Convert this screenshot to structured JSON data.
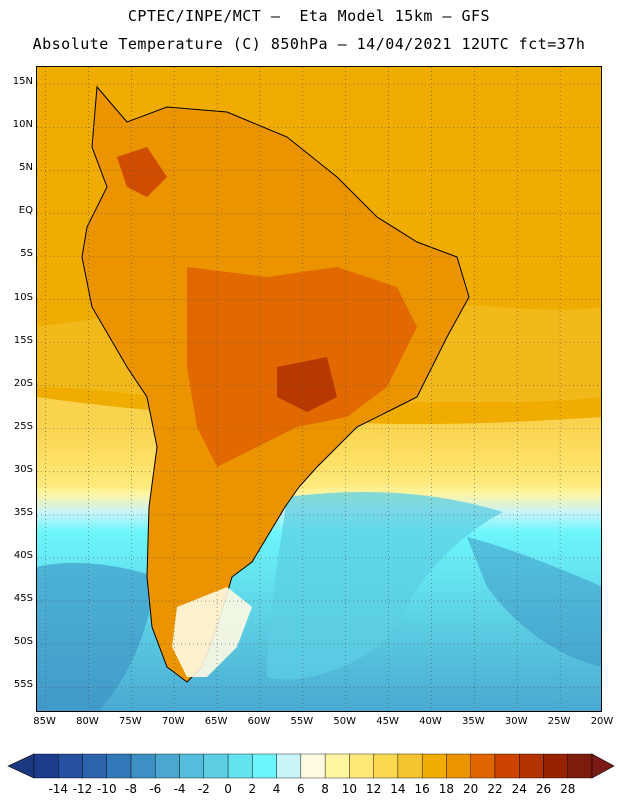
{
  "header": {
    "line1": "CPTEC/INPE/MCT –  Eta Model 15km – GFS",
    "line2": "Absolute Temperature (C) 850hPa – 14/04/2021 12UTC fct=37h"
  },
  "map": {
    "lon_range": [
      -86,
      -20
    ],
    "lat_range": [
      -58,
      17
    ],
    "lat_ticks": [
      {
        "lat": 15,
        "label": "15N"
      },
      {
        "lat": 10,
        "label": "10N"
      },
      {
        "lat": 5,
        "label": "5N"
      },
      {
        "lat": 0,
        "label": "EQ"
      },
      {
        "lat": -5,
        "label": "5S"
      },
      {
        "lat": -10,
        "label": "10S"
      },
      {
        "lat": -15,
        "label": "15S"
      },
      {
        "lat": -20,
        "label": "20S"
      },
      {
        "lat": -25,
        "label": "25S"
      },
      {
        "lat": -30,
        "label": "30S"
      },
      {
        "lat": -35,
        "label": "35S"
      },
      {
        "lat": -40,
        "label": "40S"
      },
      {
        "lat": -45,
        "label": "45S"
      },
      {
        "lat": -50,
        "label": "50S"
      },
      {
        "lat": -55,
        "label": "55S"
      }
    ],
    "lon_ticks": [
      {
        "lon": -85,
        "label": "85W"
      },
      {
        "lon": -80,
        "label": "80W"
      },
      {
        "lon": -75,
        "label": "75W"
      },
      {
        "lon": -70,
        "label": "70W"
      },
      {
        "lon": -65,
        "label": "65W"
      },
      {
        "lon": -60,
        "label": "60W"
      },
      {
        "lon": -55,
        "label": "55W"
      },
      {
        "lon": -50,
        "label": "50W"
      },
      {
        "lon": -45,
        "label": "45W"
      },
      {
        "lon": -40,
        "label": "40W"
      },
      {
        "lon": -35,
        "label": "35W"
      },
      {
        "lon": -30,
        "label": "30W"
      },
      {
        "lon": -25,
        "label": "25W"
      },
      {
        "lon": -20,
        "label": "20W"
      }
    ],
    "colorbar": {
      "labels": [
        "-14",
        "-12",
        "-10",
        "-8",
        "-6",
        "-4",
        "-2",
        "0",
        "2",
        "4",
        "6",
        "8",
        "10",
        "12",
        "14",
        "16",
        "18",
        "20",
        "22",
        "24",
        "26",
        "28"
      ],
      "colors": [
        "#1e3c8c",
        "#2850a0",
        "#2c64ac",
        "#3078b8",
        "#3c90c4",
        "#4aa8d0",
        "#54bcdc",
        "#5ccfe4",
        "#64e2ee",
        "#6cf6fb",
        "#c8f4fa",
        "#fffae2",
        "#fff5a0",
        "#ffe878",
        "#fcd850",
        "#f4c430",
        "#f0ac00",
        "#ec9400",
        "#e06400",
        "#cc4400",
        "#b23400",
        "#962200",
        "#7c1c0c"
      ],
      "under_color": "#1a3880",
      "over_color": "#7a1a14"
    }
  }
}
